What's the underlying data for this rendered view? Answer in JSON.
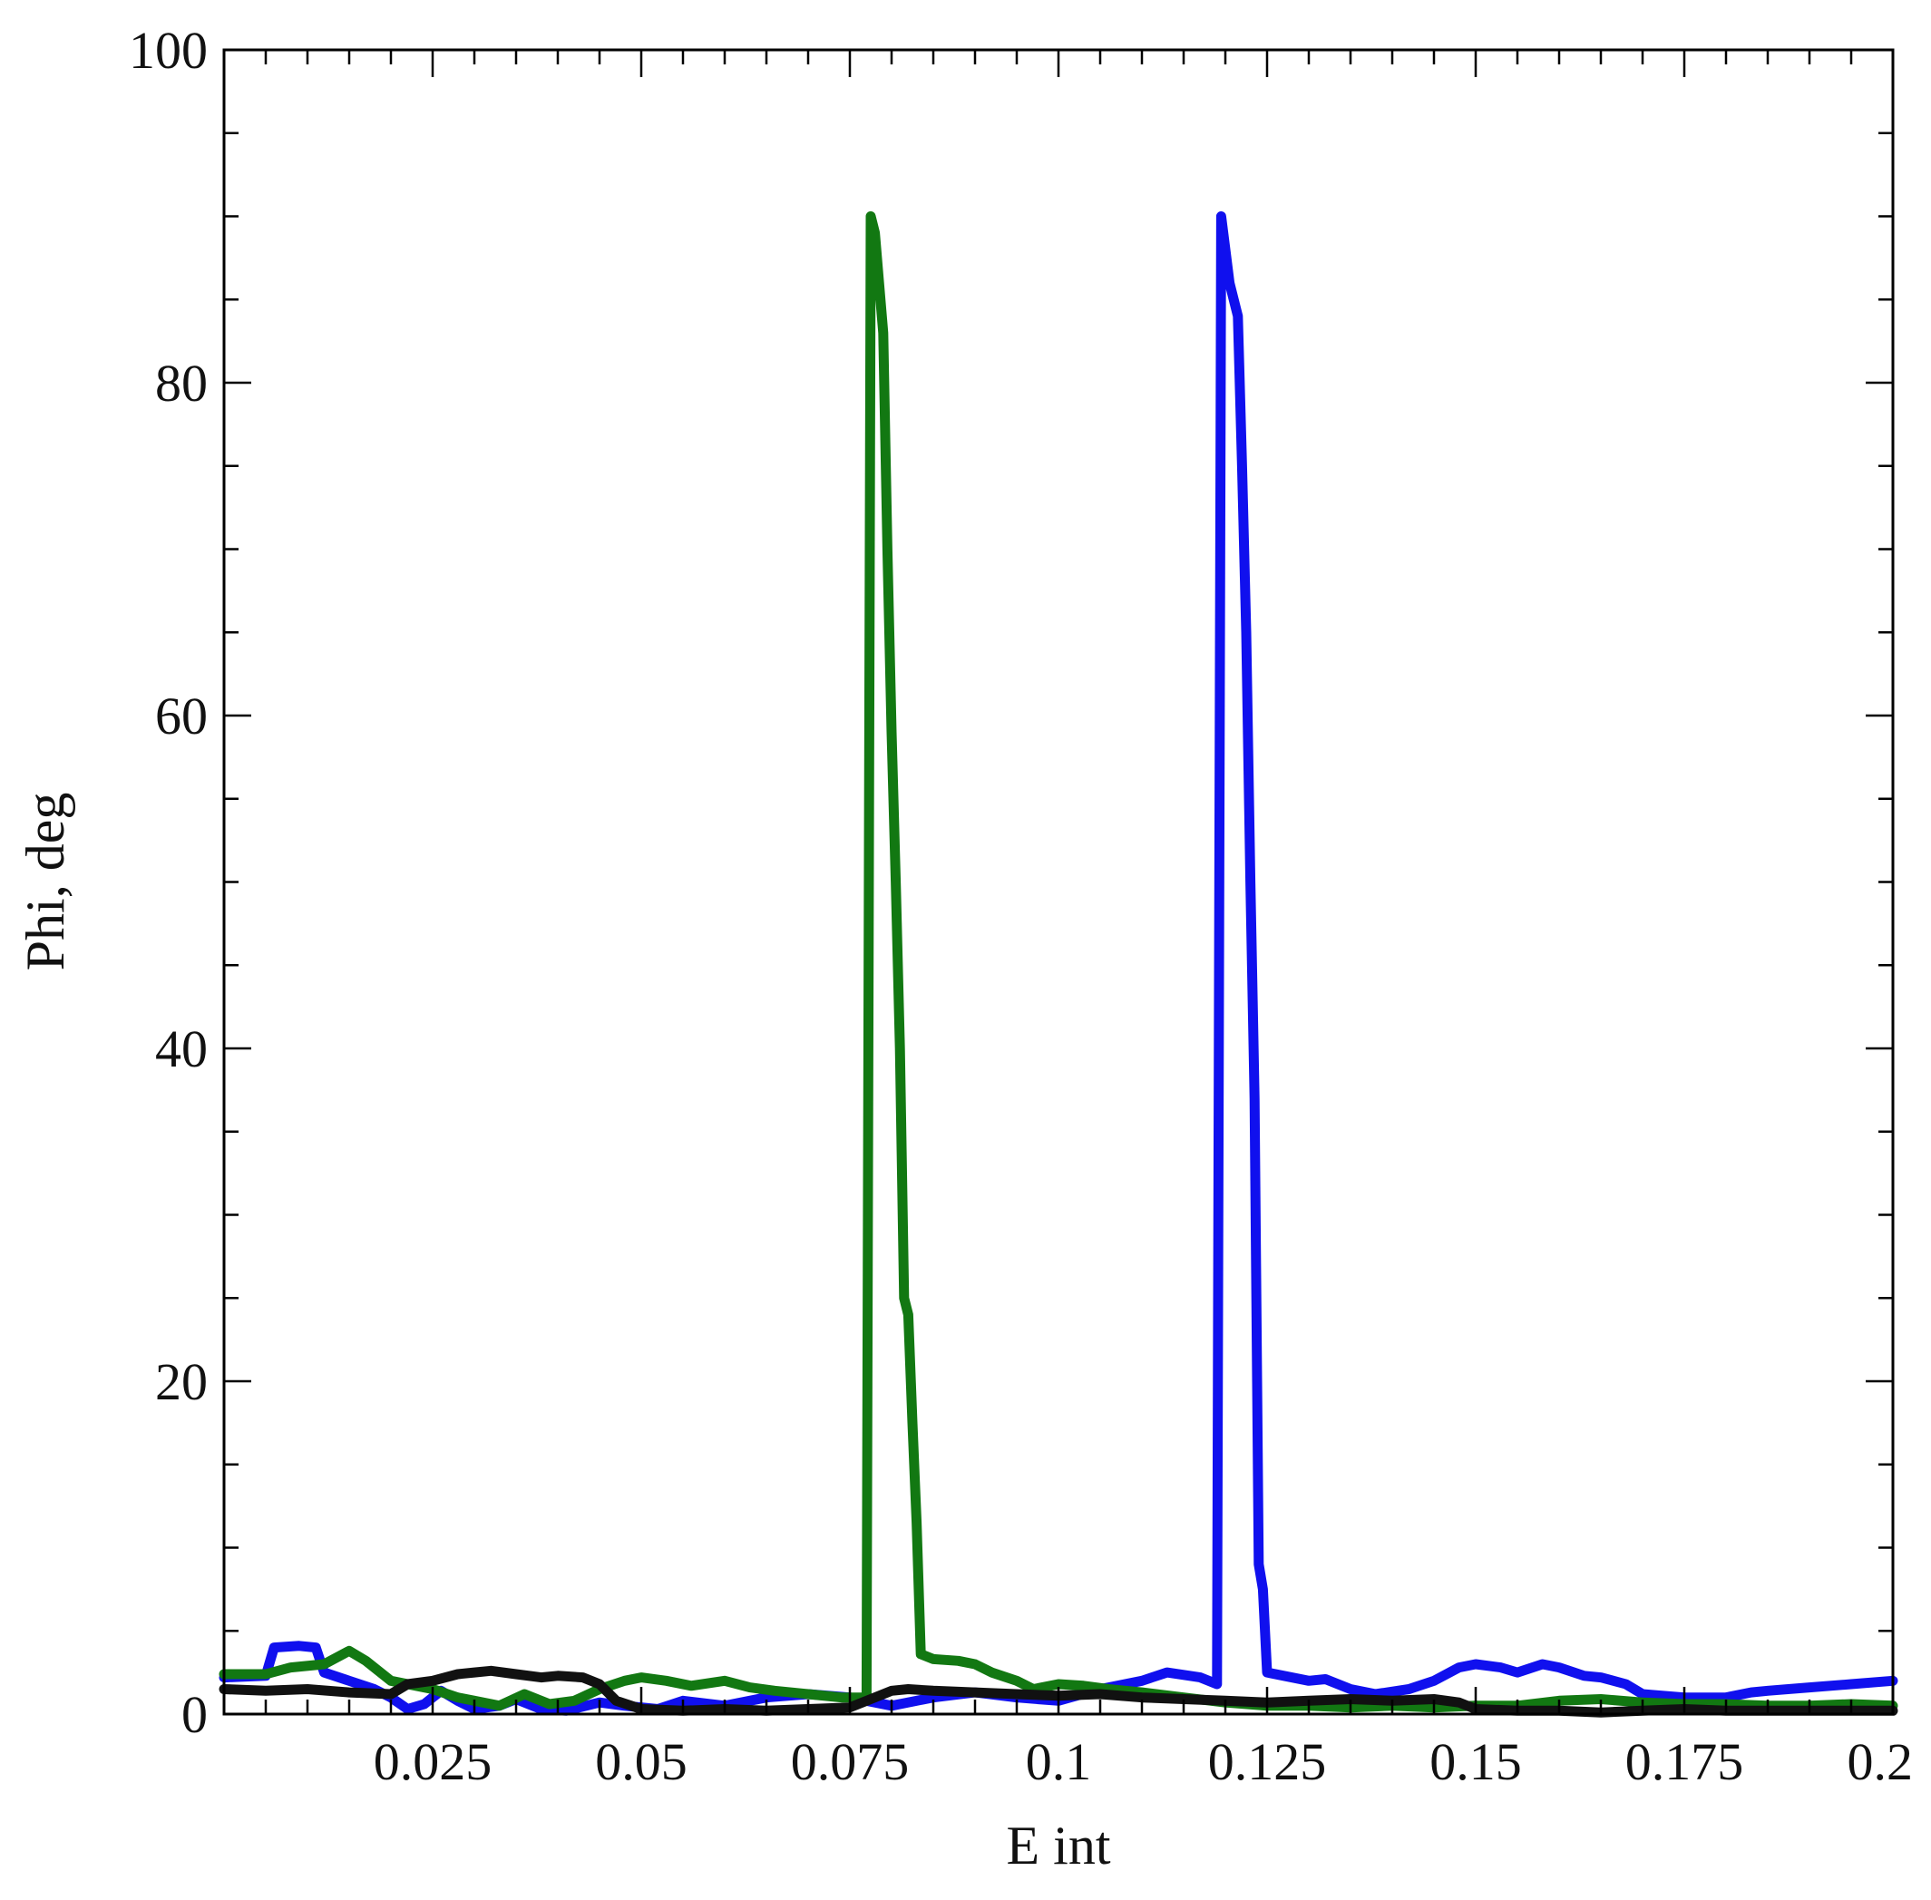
{
  "chart_data": {
    "type": "line",
    "xlabel": "E int",
    "ylabel": "Phi, deg",
    "xlim": [
      0,
      0.2
    ],
    "ylim": [
      0,
      100
    ],
    "grid": false,
    "legend": "none",
    "x_ticks": [
      {
        "value": 0.025,
        "label": "0.025"
      },
      {
        "value": 0.05,
        "label": "0.05"
      },
      {
        "value": 0.075,
        "label": "0.075"
      },
      {
        "value": 0.1,
        "label": "0.1"
      },
      {
        "value": 0.125,
        "label": "0.125"
      },
      {
        "value": 0.15,
        "label": "0.15"
      },
      {
        "value": 0.175,
        "label": "0.175"
      },
      {
        "value": 0.2,
        "label": "0.2"
      }
    ],
    "y_ticks": [
      {
        "value": 0,
        "label": "0"
      },
      {
        "value": 20,
        "label": "20"
      },
      {
        "value": 40,
        "label": "40"
      },
      {
        "value": 60,
        "label": "60"
      },
      {
        "value": 80,
        "label": "80"
      },
      {
        "value": 100,
        "label": "100"
      }
    ],
    "series": [
      {
        "color": "#1010ee",
        "points": [
          [
            0.0,
            2.2
          ],
          [
            0.005,
            2.3
          ],
          [
            0.006,
            4.0
          ],
          [
            0.009,
            4.1
          ],
          [
            0.011,
            4.0
          ],
          [
            0.012,
            2.5
          ],
          [
            0.015,
            2.0
          ],
          [
            0.018,
            1.5
          ],
          [
            0.02,
            1.0
          ],
          [
            0.022,
            0.3
          ],
          [
            0.024,
            0.6
          ],
          [
            0.026,
            1.4
          ],
          [
            0.028,
            0.8
          ],
          [
            0.03,
            0.3
          ],
          [
            0.033,
            0.5
          ],
          [
            0.035,
            0.9
          ],
          [
            0.038,
            0.3
          ],
          [
            0.041,
            0.2
          ],
          [
            0.045,
            0.7
          ],
          [
            0.048,
            0.5
          ],
          [
            0.052,
            0.3
          ],
          [
            0.055,
            0.8
          ],
          [
            0.06,
            0.5
          ],
          [
            0.065,
            1.0
          ],
          [
            0.07,
            1.2
          ],
          [
            0.075,
            1.0
          ],
          [
            0.08,
            0.5
          ],
          [
            0.085,
            1.0
          ],
          [
            0.09,
            1.3
          ],
          [
            0.095,
            1.0
          ],
          [
            0.1,
            0.8
          ],
          [
            0.105,
            1.5
          ],
          [
            0.11,
            2.0
          ],
          [
            0.113,
            2.5
          ],
          [
            0.117,
            2.2
          ],
          [
            0.119,
            1.8
          ],
          [
            0.1195,
            90.0
          ],
          [
            0.1205,
            86.0
          ],
          [
            0.1215,
            84.0
          ],
          [
            0.122,
            75.0
          ],
          [
            0.1225,
            65.0
          ],
          [
            0.123,
            50.0
          ],
          [
            0.1235,
            37.0
          ],
          [
            0.124,
            9.0
          ],
          [
            0.1245,
            7.5
          ],
          [
            0.125,
            2.5
          ],
          [
            0.127,
            2.3
          ],
          [
            0.13,
            2.0
          ],
          [
            0.132,
            2.1
          ],
          [
            0.135,
            1.5
          ],
          [
            0.138,
            1.2
          ],
          [
            0.142,
            1.5
          ],
          [
            0.145,
            2.0
          ],
          [
            0.148,
            2.8
          ],
          [
            0.15,
            3.0
          ],
          [
            0.153,
            2.8
          ],
          [
            0.155,
            2.5
          ],
          [
            0.158,
            3.0
          ],
          [
            0.16,
            2.8
          ],
          [
            0.163,
            2.3
          ],
          [
            0.165,
            2.2
          ],
          [
            0.168,
            1.8
          ],
          [
            0.17,
            1.2
          ],
          [
            0.175,
            1.0
          ],
          [
            0.18,
            1.0
          ],
          [
            0.183,
            1.3
          ],
          [
            0.185,
            1.4
          ],
          [
            0.19,
            1.6
          ],
          [
            0.195,
            1.8
          ],
          [
            0.2,
            2.0
          ]
        ]
      },
      {
        "color": "#127812",
        "points": [
          [
            0.0,
            2.4
          ],
          [
            0.005,
            2.4
          ],
          [
            0.008,
            2.8
          ],
          [
            0.012,
            3.0
          ],
          [
            0.015,
            3.8
          ],
          [
            0.017,
            3.2
          ],
          [
            0.02,
            2.0
          ],
          [
            0.025,
            1.5
          ],
          [
            0.028,
            1.0
          ],
          [
            0.03,
            0.8
          ],
          [
            0.033,
            0.5
          ],
          [
            0.036,
            1.2
          ],
          [
            0.039,
            0.6
          ],
          [
            0.042,
            0.8
          ],
          [
            0.045,
            1.5
          ],
          [
            0.048,
            2.0
          ],
          [
            0.05,
            2.2
          ],
          [
            0.053,
            2.0
          ],
          [
            0.056,
            1.7
          ],
          [
            0.06,
            2.0
          ],
          [
            0.063,
            1.6
          ],
          [
            0.066,
            1.4
          ],
          [
            0.07,
            1.2
          ],
          [
            0.074,
            1.0
          ],
          [
            0.077,
            1.0
          ],
          [
            0.0775,
            90.0
          ],
          [
            0.078,
            89.0
          ],
          [
            0.0785,
            86.0
          ],
          [
            0.079,
            83.0
          ],
          [
            0.0795,
            70.0
          ],
          [
            0.08,
            59.0
          ],
          [
            0.0805,
            50.0
          ],
          [
            0.081,
            40.0
          ],
          [
            0.0815,
            25.0
          ],
          [
            0.082,
            24.0
          ],
          [
            0.0825,
            17.5
          ],
          [
            0.083,
            11.5
          ],
          [
            0.0835,
            3.6
          ],
          [
            0.085,
            3.3
          ],
          [
            0.088,
            3.2
          ],
          [
            0.09,
            3.0
          ],
          [
            0.092,
            2.5
          ],
          [
            0.095,
            2.0
          ],
          [
            0.097,
            1.5
          ],
          [
            0.1,
            1.8
          ],
          [
            0.103,
            1.7
          ],
          [
            0.106,
            1.5
          ],
          [
            0.11,
            1.3
          ],
          [
            0.115,
            1.0
          ],
          [
            0.12,
            0.7
          ],
          [
            0.125,
            0.5
          ],
          [
            0.13,
            0.5
          ],
          [
            0.135,
            0.4
          ],
          [
            0.14,
            0.5
          ],
          [
            0.145,
            0.4
          ],
          [
            0.15,
            0.5
          ],
          [
            0.155,
            0.5
          ],
          [
            0.16,
            0.8
          ],
          [
            0.165,
            0.9
          ],
          [
            0.17,
            0.7
          ],
          [
            0.175,
            0.6
          ],
          [
            0.18,
            0.6
          ],
          [
            0.185,
            0.5
          ],
          [
            0.19,
            0.5
          ],
          [
            0.195,
            0.6
          ],
          [
            0.2,
            0.5
          ]
        ]
      },
      {
        "color": "#111111",
        "points": [
          [
            0.0,
            1.5
          ],
          [
            0.005,
            1.4
          ],
          [
            0.01,
            1.5
          ],
          [
            0.015,
            1.3
          ],
          [
            0.02,
            1.2
          ],
          [
            0.022,
            1.8
          ],
          [
            0.025,
            2.0
          ],
          [
            0.028,
            2.4
          ],
          [
            0.03,
            2.5
          ],
          [
            0.032,
            2.6
          ],
          [
            0.035,
            2.4
          ],
          [
            0.038,
            2.2
          ],
          [
            0.04,
            2.3
          ],
          [
            0.043,
            2.2
          ],
          [
            0.045,
            1.8
          ],
          [
            0.047,
            0.8
          ],
          [
            0.05,
            0.3
          ],
          [
            0.055,
            0.2
          ],
          [
            0.06,
            0.3
          ],
          [
            0.065,
            0.2
          ],
          [
            0.07,
            0.3
          ],
          [
            0.075,
            0.4
          ],
          [
            0.078,
            1.0
          ],
          [
            0.08,
            1.4
          ],
          [
            0.082,
            1.5
          ],
          [
            0.085,
            1.4
          ],
          [
            0.09,
            1.3
          ],
          [
            0.095,
            1.2
          ],
          [
            0.1,
            1.1
          ],
          [
            0.105,
            1.2
          ],
          [
            0.11,
            1.0
          ],
          [
            0.115,
            0.9
          ],
          [
            0.12,
            0.8
          ],
          [
            0.125,
            0.7
          ],
          [
            0.13,
            0.8
          ],
          [
            0.135,
            0.9
          ],
          [
            0.14,
            0.8
          ],
          [
            0.145,
            0.9
          ],
          [
            0.148,
            0.7
          ],
          [
            0.15,
            0.3
          ],
          [
            0.155,
            0.2
          ],
          [
            0.16,
            0.2
          ],
          [
            0.165,
            0.1
          ],
          [
            0.17,
            0.2
          ],
          [
            0.175,
            0.3
          ],
          [
            0.18,
            0.2
          ],
          [
            0.185,
            0.2
          ],
          [
            0.19,
            0.2
          ],
          [
            0.195,
            0.2
          ],
          [
            0.2,
            0.2
          ]
        ]
      }
    ]
  }
}
